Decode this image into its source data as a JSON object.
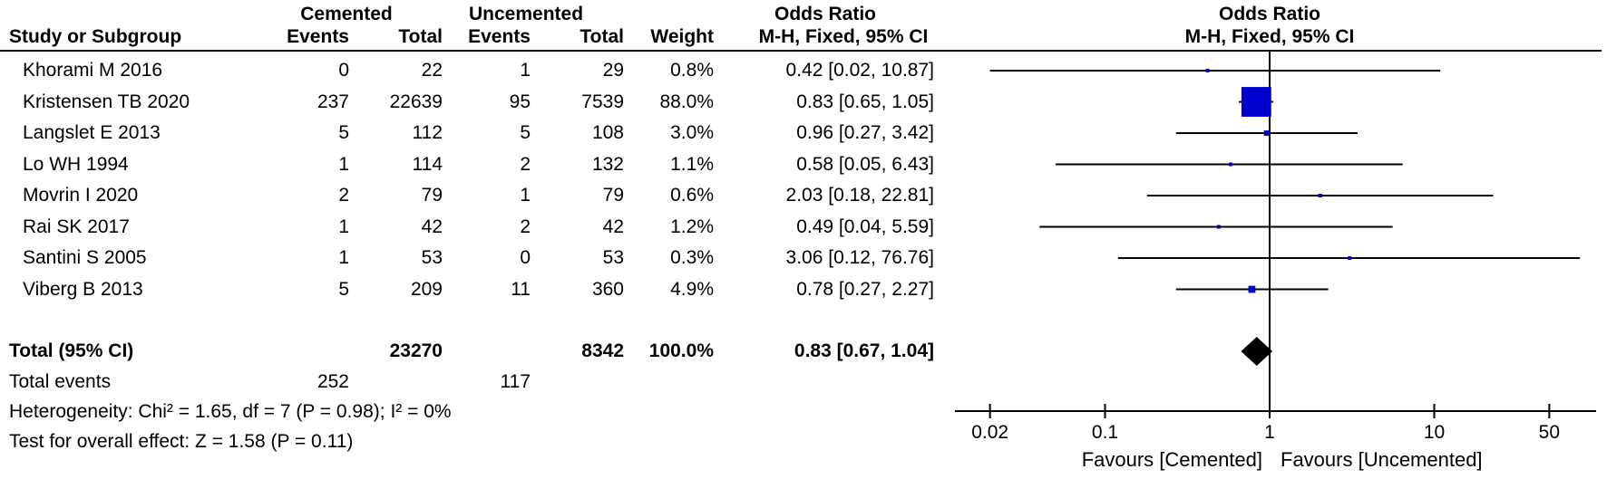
{
  "table": {
    "group_headers": {
      "cemented": "Cemented",
      "uncemented": "Uncemented",
      "odds_ratio_text_col": "Odds Ratio",
      "odds_ratio_plot_col": "Odds Ratio"
    },
    "col_headers": {
      "study": "Study or Subgroup",
      "events_cemented": "Events",
      "total_cemented": "Total",
      "events_uncemented": "Events",
      "total_uncemented": "Total",
      "weight": "Weight",
      "or_ci_text": "M-H, Fixed, 95% CI",
      "or_ci_plot": "M-H, Fixed, 95% CI"
    },
    "rows": [
      {
        "study": "Khorami M 2016",
        "events1": "0",
        "total1": "22",
        "events2": "1",
        "total2": "29",
        "weight": "0.8%",
        "or_text": "0.42 [0.02, 10.87]"
      },
      {
        "study": "Kristensen TB 2020",
        "events1": "237",
        "total1": "22639",
        "events2": "95",
        "total2": "7539",
        "weight": "88.0%",
        "or_text": "0.83 [0.65, 1.05]"
      },
      {
        "study": "Langslet E 2013",
        "events1": "5",
        "total1": "112",
        "events2": "5",
        "total2": "108",
        "weight": "3.0%",
        "or_text": "0.96 [0.27, 3.42]"
      },
      {
        "study": "Lo WH 1994",
        "events1": "1",
        "total1": "114",
        "events2": "2",
        "total2": "132",
        "weight": "1.1%",
        "or_text": "0.58 [0.05, 6.43]"
      },
      {
        "study": "Movrin I 2020",
        "events1": "2",
        "total1": "79",
        "events2": "1",
        "total2": "79",
        "weight": "0.6%",
        "or_text": "2.03 [0.18, 22.81]"
      },
      {
        "study": "Rai SK 2017",
        "events1": "1",
        "total1": "42",
        "events2": "2",
        "total2": "42",
        "weight": "1.2%",
        "or_text": "0.49 [0.04, 5.59]"
      },
      {
        "study": "Santini S 2005",
        "events1": "1",
        "total1": "53",
        "events2": "0",
        "total2": "53",
        "weight": "0.3%",
        "or_text": "3.06 [0.12, 76.76]"
      },
      {
        "study": "Viberg B 2013",
        "events1": "5",
        "total1": "209",
        "events2": "11",
        "total2": "360",
        "weight": "4.9%",
        "or_text": "0.78 [0.27, 2.27]"
      }
    ],
    "total_row": {
      "label": "Total (95% CI)",
      "total1": "23270",
      "total2": "8342",
      "weight": "100.0%",
      "or_text": "0.83 [0.67, 1.04]"
    },
    "total_events": {
      "label": "Total events",
      "events1": "252",
      "events2": "117"
    },
    "heterogeneity": "Heterogeneity: Chi² = 1.65, df = 7 (P = 0.98); I² = 0%",
    "overall_effect": "Test for overall effect: Z = 1.58 (P = 0.11)"
  },
  "chart_data": {
    "type": "scatter",
    "subtype": "forest-plot",
    "x_scale": "log10",
    "x_ticks": [
      0.02,
      0.1,
      1,
      10,
      50
    ],
    "x_range": [
      0.02,
      50
    ],
    "reference_line_x": 1,
    "effect_measure": "Odds Ratio (M-H, Fixed, 95% CI)",
    "studies": [
      {
        "name": "Khorami M 2016",
        "or": 0.42,
        "ci_low": 0.02,
        "ci_high": 10.87,
        "weight_pct": 0.8
      },
      {
        "name": "Kristensen TB 2020",
        "or": 0.83,
        "ci_low": 0.65,
        "ci_high": 1.05,
        "weight_pct": 88.0
      },
      {
        "name": "Langslet E 2013",
        "or": 0.96,
        "ci_low": 0.27,
        "ci_high": 3.42,
        "weight_pct": 3.0
      },
      {
        "name": "Lo WH 1994",
        "or": 0.58,
        "ci_low": 0.05,
        "ci_high": 6.43,
        "weight_pct": 1.1
      },
      {
        "name": "Movrin I 2020",
        "or": 2.03,
        "ci_low": 0.18,
        "ci_high": 22.81,
        "weight_pct": 0.6
      },
      {
        "name": "Rai SK 2017",
        "or": 0.49,
        "ci_low": 0.04,
        "ci_high": 5.59,
        "weight_pct": 1.2
      },
      {
        "name": "Santini S 2005",
        "or": 3.06,
        "ci_low": 0.12,
        "ci_high": 76.76,
        "weight_pct": 0.3
      },
      {
        "name": "Viberg B 2013",
        "or": 0.78,
        "ci_low": 0.27,
        "ci_high": 2.27,
        "weight_pct": 4.9
      }
    ],
    "total": {
      "or": 0.83,
      "ci_low": 0.67,
      "ci_high": 1.04
    },
    "favours_left": "Favours [Cemented]",
    "favours_right": "Favours [Uncemented]",
    "marker_color": "#0000CC",
    "line_color": "#000000",
    "diamond_color": "#000000"
  }
}
